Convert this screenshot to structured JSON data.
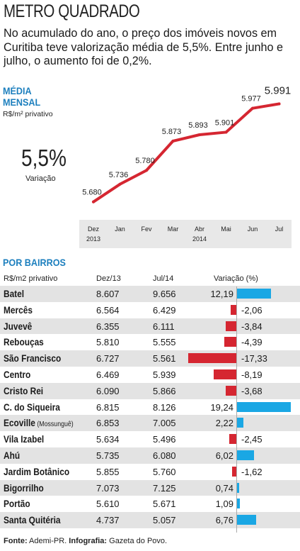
{
  "header": {
    "title": "METRO QUADRADO",
    "intro": "No acumulado do ano, o preço dos imóveis novos em Curitiba teve valorização média de 5,5%. Entre junho e julho, o aumento foi de 0,2%."
  },
  "monthly": {
    "title_line1": "MÉDIA",
    "title_line2": "MENSAL",
    "unit": "R$/m² privativo",
    "variation_value": "5,5%",
    "variation_label": "Variação"
  },
  "chart_data": [
    {
      "type": "line",
      "title": "MÉDIA MENSAL",
      "ylabel": "R$/m² privativo",
      "x": [
        "Dez",
        "Jan",
        "Fev",
        "Mar",
        "Abr",
        "Mai",
        "Jun",
        "Jul"
      ],
      "year_labels": {
        "Dez": "2013",
        "Abr": "2014"
      },
      "values": [
        5680,
        5736,
        5780,
        5873,
        5893,
        5901,
        5977,
        5991
      ],
      "value_labels": [
        "5.680",
        "5.736",
        "5.780",
        "5.873",
        "5.893",
        "5.901",
        "5.977",
        "5.991"
      ],
      "ylim": [
        5650,
        6010
      ],
      "line_color": "#d52631",
      "axis_band_color": "#e8e8e8",
      "grid": false
    },
    {
      "type": "bar",
      "title": "POR BAIRROS",
      "orientation": "horizontal",
      "columns": [
        "R$/m2 privativo",
        "Dez/13",
        "Jul/14",
        "Variação (%)"
      ],
      "positive_color": "#1aa7e4",
      "negative_color": "#d52631",
      "rows": [
        {
          "name": "Batel",
          "dez13": "8.607",
          "jul14": "9.656",
          "var_label": "12,19",
          "var": 12.19
        },
        {
          "name": "Mercês",
          "dez13": "6.564",
          "jul14": "6.429",
          "var_label": "-2,06",
          "var": -2.06
        },
        {
          "name": "Juvevê",
          "dez13": "6.355",
          "jul14": "6.111",
          "var_label": "-3,84",
          "var": -3.84
        },
        {
          "name": "Rebouças",
          "dez13": "5.810",
          "jul14": "5.555",
          "var_label": "-4,39",
          "var": -4.39
        },
        {
          "name": "São Francisco",
          "dez13": "6.727",
          "jul14": "5.561",
          "var_label": "-17,33",
          "var": -17.33
        },
        {
          "name": "Centro",
          "dez13": "6.469",
          "jul14": "5.939",
          "var_label": "-8,19",
          "var": -8.19
        },
        {
          "name": "Cristo Rei",
          "dez13": "6.090",
          "jul14": "5.866",
          "var_label": "-3,68",
          "var": -3.68
        },
        {
          "name": "C. do Siqueira",
          "dez13": "6.815",
          "jul14": "8.126",
          "var_label": "19,24",
          "var": 19.24
        },
        {
          "name": "Ecoville",
          "sub": "(Mossunguê)",
          "dez13": "6.853",
          "jul14": "7.005",
          "var_label": "2,22",
          "var": 2.22
        },
        {
          "name": "Vila Izabel",
          "dez13": "5.634",
          "jul14": "5.496",
          "var_label": "-2,45",
          "var": -2.45
        },
        {
          "name": "Ahú",
          "dez13": "5.735",
          "jul14": "6.080",
          "var_label": "6,02",
          "var": 6.02
        },
        {
          "name": "Jardim Botânico",
          "dez13": "5.855",
          "jul14": "5.760",
          "var_label": "-1,62",
          "var": -1.62
        },
        {
          "name": "Bigorrilho",
          "dez13": "7.073",
          "jul14": "7.125",
          "var_label": "0,74",
          "var": 0.74
        },
        {
          "name": "Portão",
          "dez13": "5.610",
          "jul14": "5.671",
          "var_label": "1,09",
          "var": 1.09
        },
        {
          "name": "Santa Quitéria",
          "dez13": "4.737",
          "jul14": "5.057",
          "var_label": "6,76",
          "var": 6.76
        }
      ]
    }
  ],
  "bairros": {
    "title": "POR BAIRROS"
  },
  "footer": {
    "source_label": "Fonte:",
    "source": " Ademi-PR. ",
    "info_label": "Infografia:",
    "info": " Gazeta do Povo."
  }
}
